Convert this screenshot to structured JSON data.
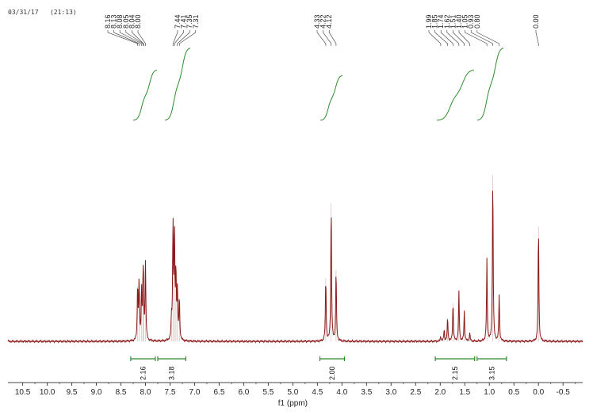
{
  "header": {
    "timestamp": "03/31/17   (21:13)"
  },
  "chart_data": {
    "type": "line",
    "title": "",
    "xlabel": "f1 (ppm)",
    "ylabel": "",
    "xlim": [
      10.8,
      -0.9
    ],
    "x_reversed": true,
    "grid": false,
    "x_ticks": [
      "10.5",
      "10.0",
      "9.5",
      "9.0",
      "8.5",
      "8.0",
      "7.5",
      "7.0",
      "6.5",
      "6.0",
      "5.5",
      "5.0",
      "4.5",
      "4.0",
      "3.5",
      "3.0",
      "2.5",
      "2.0",
      "1.5",
      "1.0",
      "0.5",
      "0.0",
      "-0.5"
    ],
    "peak_labels": [
      {
        "group": 1,
        "labels": [
          "8.16",
          "8.13",
          "8.08",
          "8.05",
          "8.04",
          "8.00"
        ],
        "anchors": [
          8.16,
          8.13,
          8.08,
          8.05,
          8.04,
          8.0
        ]
      },
      {
        "group": 2,
        "labels": [
          "7.44",
          "7.41",
          "7.35",
          "7.31"
        ],
        "anchors": [
          7.44,
          7.41,
          7.35,
          7.31
        ]
      },
      {
        "group": 3,
        "labels": [
          "4.33",
          "4.22",
          "4.12"
        ],
        "anchors": [
          4.33,
          4.22,
          4.12
        ]
      },
      {
        "group": 4,
        "labels": [
          "1.99",
          "1.85",
          "1.74",
          "1.62",
          "1.51",
          "1.40",
          "1.05",
          "0.93",
          "0.80"
        ],
        "anchors": [
          1.99,
          1.85,
          1.74,
          1.62,
          1.51,
          1.4,
          1.05,
          0.93,
          0.8
        ]
      },
      {
        "group": 5,
        "labels": [
          "0.00"
        ],
        "anchors": [
          0.0
        ]
      }
    ],
    "peaks": [
      {
        "x": 8.16,
        "h": 0.33
      },
      {
        "x": 8.13,
        "h": 0.35
      },
      {
        "x": 8.08,
        "h": 0.3
      },
      {
        "x": 8.05,
        "h": 0.28
      },
      {
        "x": 8.04,
        "h": 0.26
      },
      {
        "x": 8.0,
        "h": 0.46
      },
      {
        "x": 7.44,
        "h": 0.69
      },
      {
        "x": 7.41,
        "h": 0.66
      },
      {
        "x": 7.38,
        "h": 0.4
      },
      {
        "x": 7.35,
        "h": 0.3
      },
      {
        "x": 7.31,
        "h": 0.25
      },
      {
        "x": 7.47,
        "h": 0.12
      },
      {
        "x": 4.33,
        "h": 0.38
      },
      {
        "x": 4.22,
        "h": 0.83
      },
      {
        "x": 4.12,
        "h": 0.43
      },
      {
        "x": 1.99,
        "h": 0.03
      },
      {
        "x": 1.92,
        "h": 0.07
      },
      {
        "x": 1.85,
        "h": 0.14
      },
      {
        "x": 1.74,
        "h": 0.23
      },
      {
        "x": 1.62,
        "h": 0.3
      },
      {
        "x": 1.51,
        "h": 0.18
      },
      {
        "x": 1.4,
        "h": 0.05
      },
      {
        "x": 1.05,
        "h": 0.49
      },
      {
        "x": 0.93,
        "h": 1.0
      },
      {
        "x": 0.8,
        "h": 0.28
      },
      {
        "x": 0.0,
        "h": 0.69
      }
    ],
    "integrals": [
      {
        "from": 8.3,
        "to": 7.8,
        "value": "2.16"
      },
      {
        "from": 7.75,
        "to": 7.18,
        "value": "3.18"
      },
      {
        "from": 4.45,
        "to": 3.95,
        "value": "2.00"
      },
      {
        "from": 2.1,
        "to": 1.3,
        "value": "2.15"
      },
      {
        "from": 1.25,
        "to": 0.65,
        "value": "3.15"
      }
    ],
    "colors": {
      "spectrum": "#8b1a1a",
      "integral_curve": "#2e8b2e",
      "integral_bar": "#2e8b2e"
    }
  }
}
